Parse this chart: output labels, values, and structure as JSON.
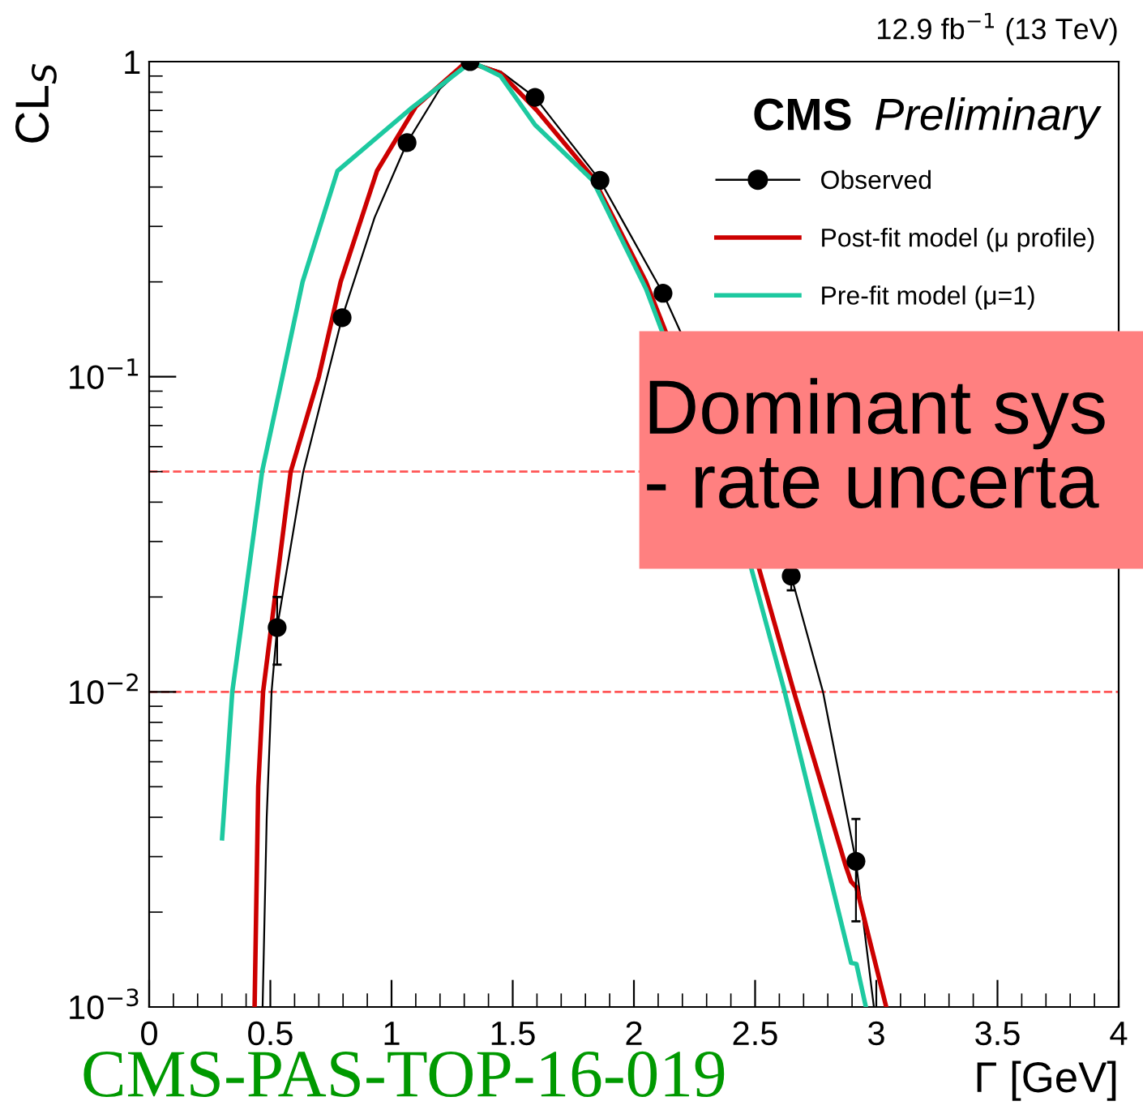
{
  "chart_data": {
    "type": "line",
    "title": "CMS",
    "subtitle": "Preliminary",
    "xlabel": "Γ [GeV]",
    "ylabel": "CL$_{S}$",
    "log": "y",
    "xlim": [
      0,
      4
    ],
    "ylim": [
      0.001,
      1
    ],
    "xticks": [
      0,
      0.5,
      1,
      1.5,
      2,
      2.5,
      3,
      3.5,
      4
    ],
    "yticks": [
      {
        "value": 0.001,
        "label": "10$^{−3}$"
      },
      {
        "value": 0.01,
        "label": "10$^{−2}$"
      },
      {
        "value": 0.1,
        "label": "10$^{−1}$"
      },
      {
        "value": 1,
        "label": "1"
      }
    ],
    "grid": false,
    "legend": "top right",
    "series": [
      {
        "type": "scatter",
        "name": "Observed",
        "color": "#000000",
        "marker": "circle",
        "x": [
          0.528,
          0.796,
          1.064,
          1.324,
          1.592,
          1.86,
          2.12,
          2.383,
          2.649,
          2.916
        ],
        "values": [
          0.016,
          0.154,
          0.553,
          1.0,
          0.77,
          0.42,
          0.184,
          null,
          0.0233,
          0.0029
        ],
        "errors": [
          [
            0.0122,
            0.02
          ],
          null,
          null,
          null,
          null,
          null,
          null,
          null,
          [
            0.021,
            0.025
          ],
          [
            0.00187,
            0.00395
          ]
        ]
      },
      {
        "color": "#000000",
        "x": [
          0.468,
          0.485,
          0.505,
          0.528,
          0.636,
          0.796,
          0.93,
          1.064,
          1.2,
          1.324,
          1.45,
          1.592,
          1.86,
          2.12,
          2.649,
          2.78,
          2.916,
          2.99
        ],
        "values": [
          0.001,
          0.004,
          0.01,
          0.016,
          0.05,
          0.154,
          0.32,
          0.553,
          0.82,
          1.0,
          0.93,
          0.77,
          0.42,
          0.184,
          0.0233,
          0.01,
          0.0029,
          0.001
        ]
      },
      {
        "name": "Post-fit model (μ profile)",
        "color": "#cc0000",
        "x": [
          0.435,
          0.45,
          0.47,
          0.584,
          0.7,
          0.79,
          0.94,
          1.1,
          1.31,
          1.45,
          1.6,
          1.83,
          2.05,
          2.515,
          2.66,
          2.874,
          2.896,
          2.918,
          3.041
        ],
        "values": [
          0.001,
          0.005,
          0.01,
          0.05,
          0.1,
          0.2,
          0.45,
          0.72,
          1.0,
          0.92,
          0.7,
          0.43,
          0.2,
          0.0248,
          0.01,
          0.0028,
          0.0025,
          0.0024,
          0.001
        ]
      },
      {
        "name": "Pre-fit model (μ=1)",
        "color": "#1dc9a0",
        "x": [
          0.301,
          0.343,
          0.466,
          0.55,
          0.633,
          0.777,
          1.08,
          1.33,
          1.45,
          1.592,
          1.83,
          2.05,
          2.484,
          2.622,
          2.896,
          2.918,
          2.957
        ],
        "values": [
          0.00343,
          0.01,
          0.05,
          0.1,
          0.2,
          0.45,
          0.71,
          1.0,
          0.9,
          0.63,
          0.42,
          0.19,
          0.0247,
          0.01,
          0.00138,
          0.00137,
          0.001
        ]
      }
    ],
    "ref_lines": [
      {
        "axis": "y",
        "value": 0.05,
        "color": "#ff5555",
        "line_style": "dashed"
      },
      {
        "axis": "y",
        "value": 0.01,
        "color": "#ff5555",
        "line_style": "dashed"
      }
    ],
    "annotations": [
      "12.9 fb$^{−1}$ (13 TeV)",
      "Dominant sys\n- rate uncerta",
      "CMS-PAS-TOP-16-019"
    ]
  }
}
